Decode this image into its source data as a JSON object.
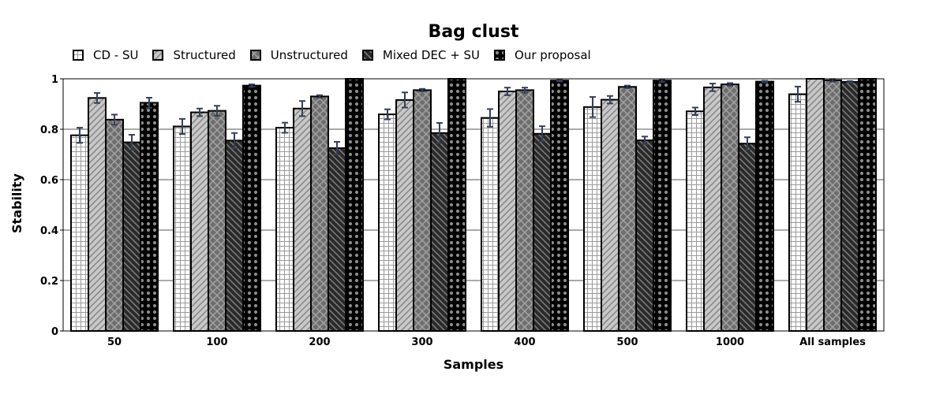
{
  "chart_data": {
    "type": "bar",
    "title": "Bag clust",
    "xlabel": "Samples",
    "ylabel": "Stability",
    "ylim": [
      0,
      1
    ],
    "yticks": [
      "0",
      "0.2",
      "0.4",
      "0.6",
      "0.8",
      "1"
    ],
    "grid": true,
    "legend_position": "top-left",
    "categories": [
      "50",
      "100",
      "200",
      "300",
      "400",
      "500",
      "1000",
      "All samples"
    ],
    "series": [
      {
        "name": "CD - SU",
        "pattern": "grid",
        "color": "#ffffff",
        "values": [
          0.776,
          0.811,
          0.806,
          0.859,
          0.845,
          0.888,
          0.871,
          0.939
        ],
        "errors": [
          0.03,
          0.03,
          0.02,
          0.02,
          0.035,
          0.04,
          0.015,
          0.03
        ]
      },
      {
        "name": "Structured",
        "pattern": "diagonal-up",
        "color": "#c8c8c8",
        "values": [
          0.924,
          0.867,
          0.882,
          0.916,
          0.95,
          0.917,
          0.966,
          1.0
        ],
        "errors": [
          0.02,
          0.015,
          0.03,
          0.03,
          0.015,
          0.015,
          0.015,
          0.0
        ]
      },
      {
        "name": "Unstructured",
        "pattern": "crosshatch",
        "color": "#6e6e6e",
        "values": [
          0.838,
          0.873,
          0.93,
          0.955,
          0.955,
          0.968,
          0.978,
          0.994
        ],
        "errors": [
          0.02,
          0.02,
          0.005,
          0.005,
          0.01,
          0.005,
          0.005,
          0.005
        ]
      },
      {
        "name": "Mixed DEC + SU",
        "pattern": "diagonal-down",
        "color": "#2a2a2a",
        "values": [
          0.748,
          0.755,
          0.725,
          0.785,
          0.782,
          0.756,
          0.743,
          0.988
        ],
        "errors": [
          0.03,
          0.03,
          0.025,
          0.04,
          0.03,
          0.015,
          0.025,
          0.003
        ]
      },
      {
        "name": "Our proposal",
        "pattern": "dots",
        "color": "#000000",
        "values": [
          0.905,
          0.973,
          1.0,
          1.0,
          0.993,
          0.993,
          0.989,
          1.0
        ],
        "errors": [
          0.02,
          0.005,
          0.0,
          0.0,
          0.003,
          0.005,
          0.003,
          0.0
        ]
      }
    ],
    "colors": {
      "error_bar": "#34405a",
      "grid": "#555555",
      "border": "#000000"
    }
  }
}
